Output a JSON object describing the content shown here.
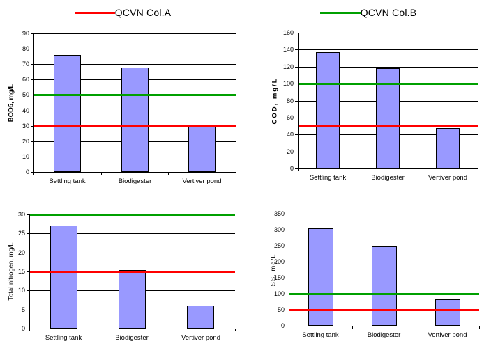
{
  "legend": {
    "items": [
      {
        "label": "QCVN Col.A",
        "color": "#FF0000"
      },
      {
        "label": "QCVN Col.B",
        "color": "#00A000"
      }
    ],
    "position": "top"
  },
  "chart_data": [
    {
      "type": "bar",
      "title": "",
      "ylabel": "BOD5, mg/L",
      "categories": [
        "Settling tank",
        "Biodigester",
        "Vertiver pond"
      ],
      "values": [
        76,
        68,
        30
      ],
      "ylim": [
        0,
        90
      ],
      "ytick_step": 10,
      "bar_color": "#9999FF",
      "grid": true,
      "ref_lines": [
        {
          "name": "QCVN Col.A",
          "value": 30,
          "color": "#FF0000"
        },
        {
          "name": "QCVN Col.B",
          "value": 50,
          "color": "#00A000"
        }
      ]
    },
    {
      "type": "bar",
      "title": "",
      "ylabel": "COD, mg/L",
      "categories": [
        "Settling tank",
        "Biodigester",
        "Vertiver pond"
      ],
      "values": [
        137,
        118,
        48
      ],
      "ylim": [
        0,
        160
      ],
      "ytick_step": 20,
      "bar_color": "#9999FF",
      "grid": true,
      "ref_lines": [
        {
          "name": "QCVN Col.A",
          "value": 50,
          "color": "#FF0000"
        },
        {
          "name": "QCVN Col.B",
          "value": 100,
          "color": "#00A000"
        }
      ]
    },
    {
      "type": "bar",
      "title": "",
      "ylabel": "Total nitrogen, mg/L",
      "categories": [
        "Settling tank",
        "Biodigester",
        "Vertiver pond"
      ],
      "values": [
        27,
        15.3,
        6
      ],
      "ylim": [
        0,
        30
      ],
      "ytick_step": 5,
      "bar_color": "#9999FF",
      "grid": true,
      "ref_lines": [
        {
          "name": "QCVN Col.A",
          "value": 15,
          "color": "#FF0000"
        },
        {
          "name": "QCVN Col.B",
          "value": 30,
          "color": "#00A000"
        }
      ]
    },
    {
      "type": "bar",
      "title": "",
      "ylabel": "SS, mg/L",
      "categories": [
        "Settling tank",
        "Biodigester",
        "Vertiver pond"
      ],
      "values": [
        305,
        248,
        82
      ],
      "ylim": [
        0,
        350
      ],
      "ytick_step": 50,
      "bar_color": "#9999FF",
      "grid": true,
      "ref_lines": [
        {
          "name": "QCVN Col.A",
          "value": 50,
          "color": "#FF0000"
        },
        {
          "name": "QCVN Col.B",
          "value": 100,
          "color": "#00A000"
        }
      ]
    }
  ]
}
